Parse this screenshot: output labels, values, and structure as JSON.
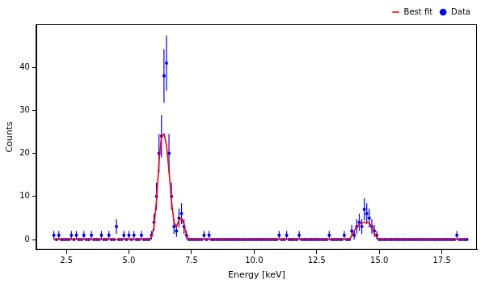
{
  "chart_data": {
    "type": "scatter",
    "xlabel": "Energy [keV]",
    "ylabel": "Counts",
    "xlim": [
      1.3,
      18.9
    ],
    "ylim": [
      -2.4,
      50
    ],
    "xticks": [
      {
        "value": 2.5,
        "label": "2.5"
      },
      {
        "value": 5,
        "label": "5.0"
      },
      {
        "value": 7.5,
        "label": "7.5"
      },
      {
        "value": 10,
        "label": "10.0"
      },
      {
        "value": 12.5,
        "label": "12.5"
      },
      {
        "value": 15,
        "label": "15.0"
      },
      {
        "value": 17.5,
        "label": "17.5"
      }
    ],
    "yticks": [
      0,
      10,
      20,
      30,
      40
    ],
    "grid": false,
    "legend": "upper right",
    "series": [
      {
        "name": "Best fit",
        "type": "line",
        "color": "#ff0000",
        "line_style": "solid",
        "x": [
          2.0,
          5.8,
          5.9,
          6.0,
          6.1,
          6.2,
          6.3,
          6.4,
          6.5,
          6.6,
          6.7,
          6.8,
          6.9,
          7.0,
          7.1,
          7.2,
          7.3,
          7.4,
          13.8,
          13.9,
          14.0,
          14.1,
          14.2,
          14.3,
          14.4,
          14.5,
          14.6,
          14.7,
          14.8,
          14.9,
          15.0,
          18.5
        ],
        "values": [
          0,
          0,
          0.5,
          3,
          9,
          18,
          24,
          24.5,
          22,
          16,
          9,
          4,
          3,
          4.5,
          5,
          3.5,
          1,
          0,
          0,
          0.8,
          2,
          3,
          3.5,
          3.8,
          4,
          4,
          3.8,
          3,
          1.5,
          0.5,
          0,
          0
        ]
      },
      {
        "name": "Data",
        "type": "scatter",
        "color": "#0000ff",
        "marker": "circle",
        "x": [
          2.0,
          2.1,
          2.2,
          2.3,
          2.4,
          2.5,
          2.6,
          2.7,
          2.8,
          2.9,
          3.0,
          3.1,
          3.2,
          3.3,
          3.4,
          3.5,
          3.6,
          3.7,
          3.8,
          3.9,
          4.0,
          4.1,
          4.2,
          4.3,
          4.4,
          4.5,
          4.6,
          4.7,
          4.8,
          4.9,
          5.0,
          5.1,
          5.2,
          5.3,
          5.4,
          5.5,
          5.6,
          5.7,
          5.8,
          5.9,
          6.0,
          6.1,
          6.2,
          6.3,
          6.4,
          6.5,
          6.6,
          6.7,
          6.8,
          6.9,
          7.0,
          7.1,
          7.2,
          7.3,
          7.4,
          7.5,
          7.6,
          7.7,
          7.8,
          7.9,
          8.0,
          8.1,
          8.2,
          8.3,
          8.4,
          8.5,
          8.6,
          8.7,
          8.8,
          8.9,
          9.0,
          9.1,
          9.2,
          9.3,
          9.4,
          9.5,
          9.6,
          9.7,
          9.8,
          9.9,
          10.0,
          10.1,
          10.2,
          10.3,
          10.4,
          10.5,
          10.6,
          10.7,
          10.8,
          10.9,
          11.0,
          11.1,
          11.2,
          11.3,
          11.4,
          11.5,
          11.6,
          11.7,
          11.8,
          11.9,
          12.0,
          12.1,
          12.2,
          12.3,
          12.4,
          12.5,
          12.6,
          12.7,
          12.8,
          12.9,
          13.0,
          13.1,
          13.2,
          13.3,
          13.4,
          13.5,
          13.6,
          13.7,
          13.8,
          13.9,
          14.0,
          14.1,
          14.2,
          14.3,
          14.4,
          14.5,
          14.6,
          14.7,
          14.8,
          14.9,
          15.0,
          15.1,
          15.2,
          15.3,
          15.4,
          15.5,
          15.6,
          15.7,
          15.8,
          15.9,
          16.0,
          16.1,
          16.2,
          16.3,
          16.4,
          16.5,
          16.6,
          16.7,
          16.8,
          16.9,
          17.0,
          17.1,
          17.2,
          17.3,
          17.4,
          17.5,
          17.6,
          17.7,
          17.8,
          17.9,
          18.0,
          18.1,
          18.2,
          18.3,
          18.4,
          18.5
        ],
        "values": [
          1,
          0,
          1,
          0,
          0,
          0,
          0,
          1,
          0,
          1,
          0,
          0,
          1,
          0,
          0,
          1,
          0,
          0,
          0,
          1,
          0,
          0,
          1,
          0,
          0,
          3,
          0,
          0,
          1,
          0,
          1,
          0,
          1,
          0,
          0,
          1,
          0,
          0,
          0,
          1,
          4,
          10,
          20,
          24,
          38,
          41,
          20,
          10,
          3,
          2,
          5,
          6,
          3,
          1,
          0,
          0,
          0,
          0,
          0,
          0,
          1,
          0,
          1,
          0,
          0,
          0,
          0,
          0,
          0,
          0,
          0,
          0,
          0,
          0,
          0,
          0,
          0,
          0,
          0,
          0,
          0,
          0,
          0,
          0,
          0,
          0,
          0,
          0,
          0,
          0,
          1,
          0,
          0,
          1,
          0,
          0,
          0,
          0,
          1,
          0,
          0,
          0,
          0,
          0,
          0,
          0,
          0,
          0,
          0,
          0,
          1,
          0,
          0,
          0,
          0,
          0,
          1,
          0,
          0,
          2,
          1,
          3,
          4,
          3,
          7,
          6,
          5,
          3,
          2,
          1,
          0,
          0,
          0,
          0,
          0,
          0,
          0,
          0,
          0,
          0,
          0,
          0,
          0,
          0,
          0,
          0,
          0,
          0,
          0,
          0,
          0,
          0,
          0,
          0,
          0,
          0,
          0,
          0,
          0,
          0,
          0,
          1,
          0,
          0,
          0,
          0
        ],
        "errors": [
          1,
          0,
          1,
          0,
          0,
          0,
          0,
          1,
          0,
          1,
          0,
          0,
          1,
          0,
          0,
          1,
          0,
          0,
          0,
          1,
          0,
          0,
          1,
          0,
          0,
          1.7,
          0,
          0,
          1,
          0,
          1,
          0,
          1,
          0,
          0,
          1,
          0,
          0,
          0,
          1,
          2,
          3.2,
          4.5,
          4.9,
          6.2,
          6.4,
          4.5,
          3.2,
          1.7,
          1.4,
          2.2,
          2.4,
          1.7,
          1,
          0,
          0,
          0,
          0,
          0,
          0,
          1,
          0,
          1,
          0,
          0,
          0,
          0,
          0,
          0,
          0,
          0,
          0,
          0,
          0,
          0,
          0,
          0,
          0,
          0,
          0,
          0,
          0,
          0,
          0,
          0,
          0,
          0,
          0,
          0,
          0,
          1,
          0,
          0,
          1,
          0,
          0,
          0,
          0,
          1,
          0,
          0,
          0,
          0,
          0,
          0,
          0,
          0,
          0,
          0,
          0,
          1,
          0,
          0,
          0,
          0,
          0,
          1,
          0,
          0,
          1.4,
          1,
          1.7,
          2,
          1.7,
          2.6,
          2.4,
          2.2,
          1.7,
          1.4,
          1,
          0,
          0,
          0,
          0,
          0,
          0,
          0,
          0,
          0,
          0,
          0,
          0,
          0,
          0,
          0,
          0,
          0,
          0,
          0,
          0,
          0,
          0,
          0,
          0,
          0,
          0,
          0,
          0,
          0,
          0,
          0,
          1,
          0,
          0,
          0,
          0
        ]
      }
    ]
  }
}
